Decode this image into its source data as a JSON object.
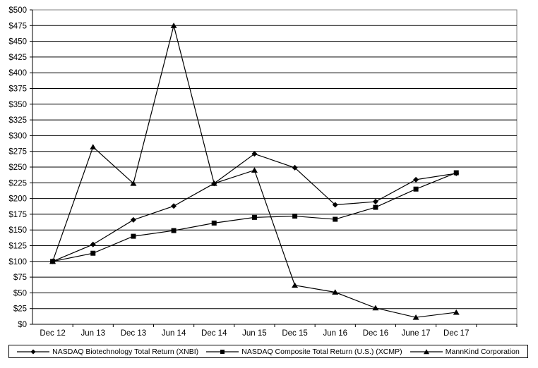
{
  "chart_data": {
    "type": "line",
    "title": "",
    "xlabel": "",
    "ylabel": "",
    "ylim": [
      0,
      500
    ],
    "y_tick_step": 25,
    "y_tick_labels": [
      "$0",
      "$25",
      "$50",
      "$75",
      "$100",
      "$125",
      "$150",
      "$175",
      "$200",
      "$225",
      "$250",
      "$275",
      "$300",
      "$325",
      "$350",
      "$375",
      "$400",
      "$425",
      "$450",
      "$475",
      "$500"
    ],
    "grid": true,
    "legend_position": "bottom",
    "categories": [
      "Dec 12",
      "Jun 13",
      "Dec 13",
      "Jun 14",
      "Dec 14",
      "Jun 15",
      "Dec 15",
      "Jun 16",
      "Dec 16",
      "June 17",
      "Dec 17"
    ],
    "series": [
      {
        "name": "NASDAQ Biotechnology Total Return (XNBI)",
        "marker": "diamond",
        "values": [
          100,
          127,
          166,
          188,
          224,
          271,
          249,
          190,
          195,
          230,
          240
        ]
      },
      {
        "name": "NASDAQ Composite Total Return (U.S.) (XCMP)",
        "marker": "square",
        "values": [
          100,
          113,
          140,
          149,
          161,
          170,
          172,
          167,
          186,
          215,
          241
        ]
      },
      {
        "name": "MannKind Corporation",
        "marker": "triangle",
        "values": [
          100,
          282,
          224,
          475,
          224,
          245,
          62,
          51,
          26,
          11,
          19
        ]
      }
    ],
    "colors": {
      "line": "#000000",
      "grid": "#000000",
      "plot_border": "#808080",
      "background": "#ffffff",
      "text": "#000000"
    }
  }
}
